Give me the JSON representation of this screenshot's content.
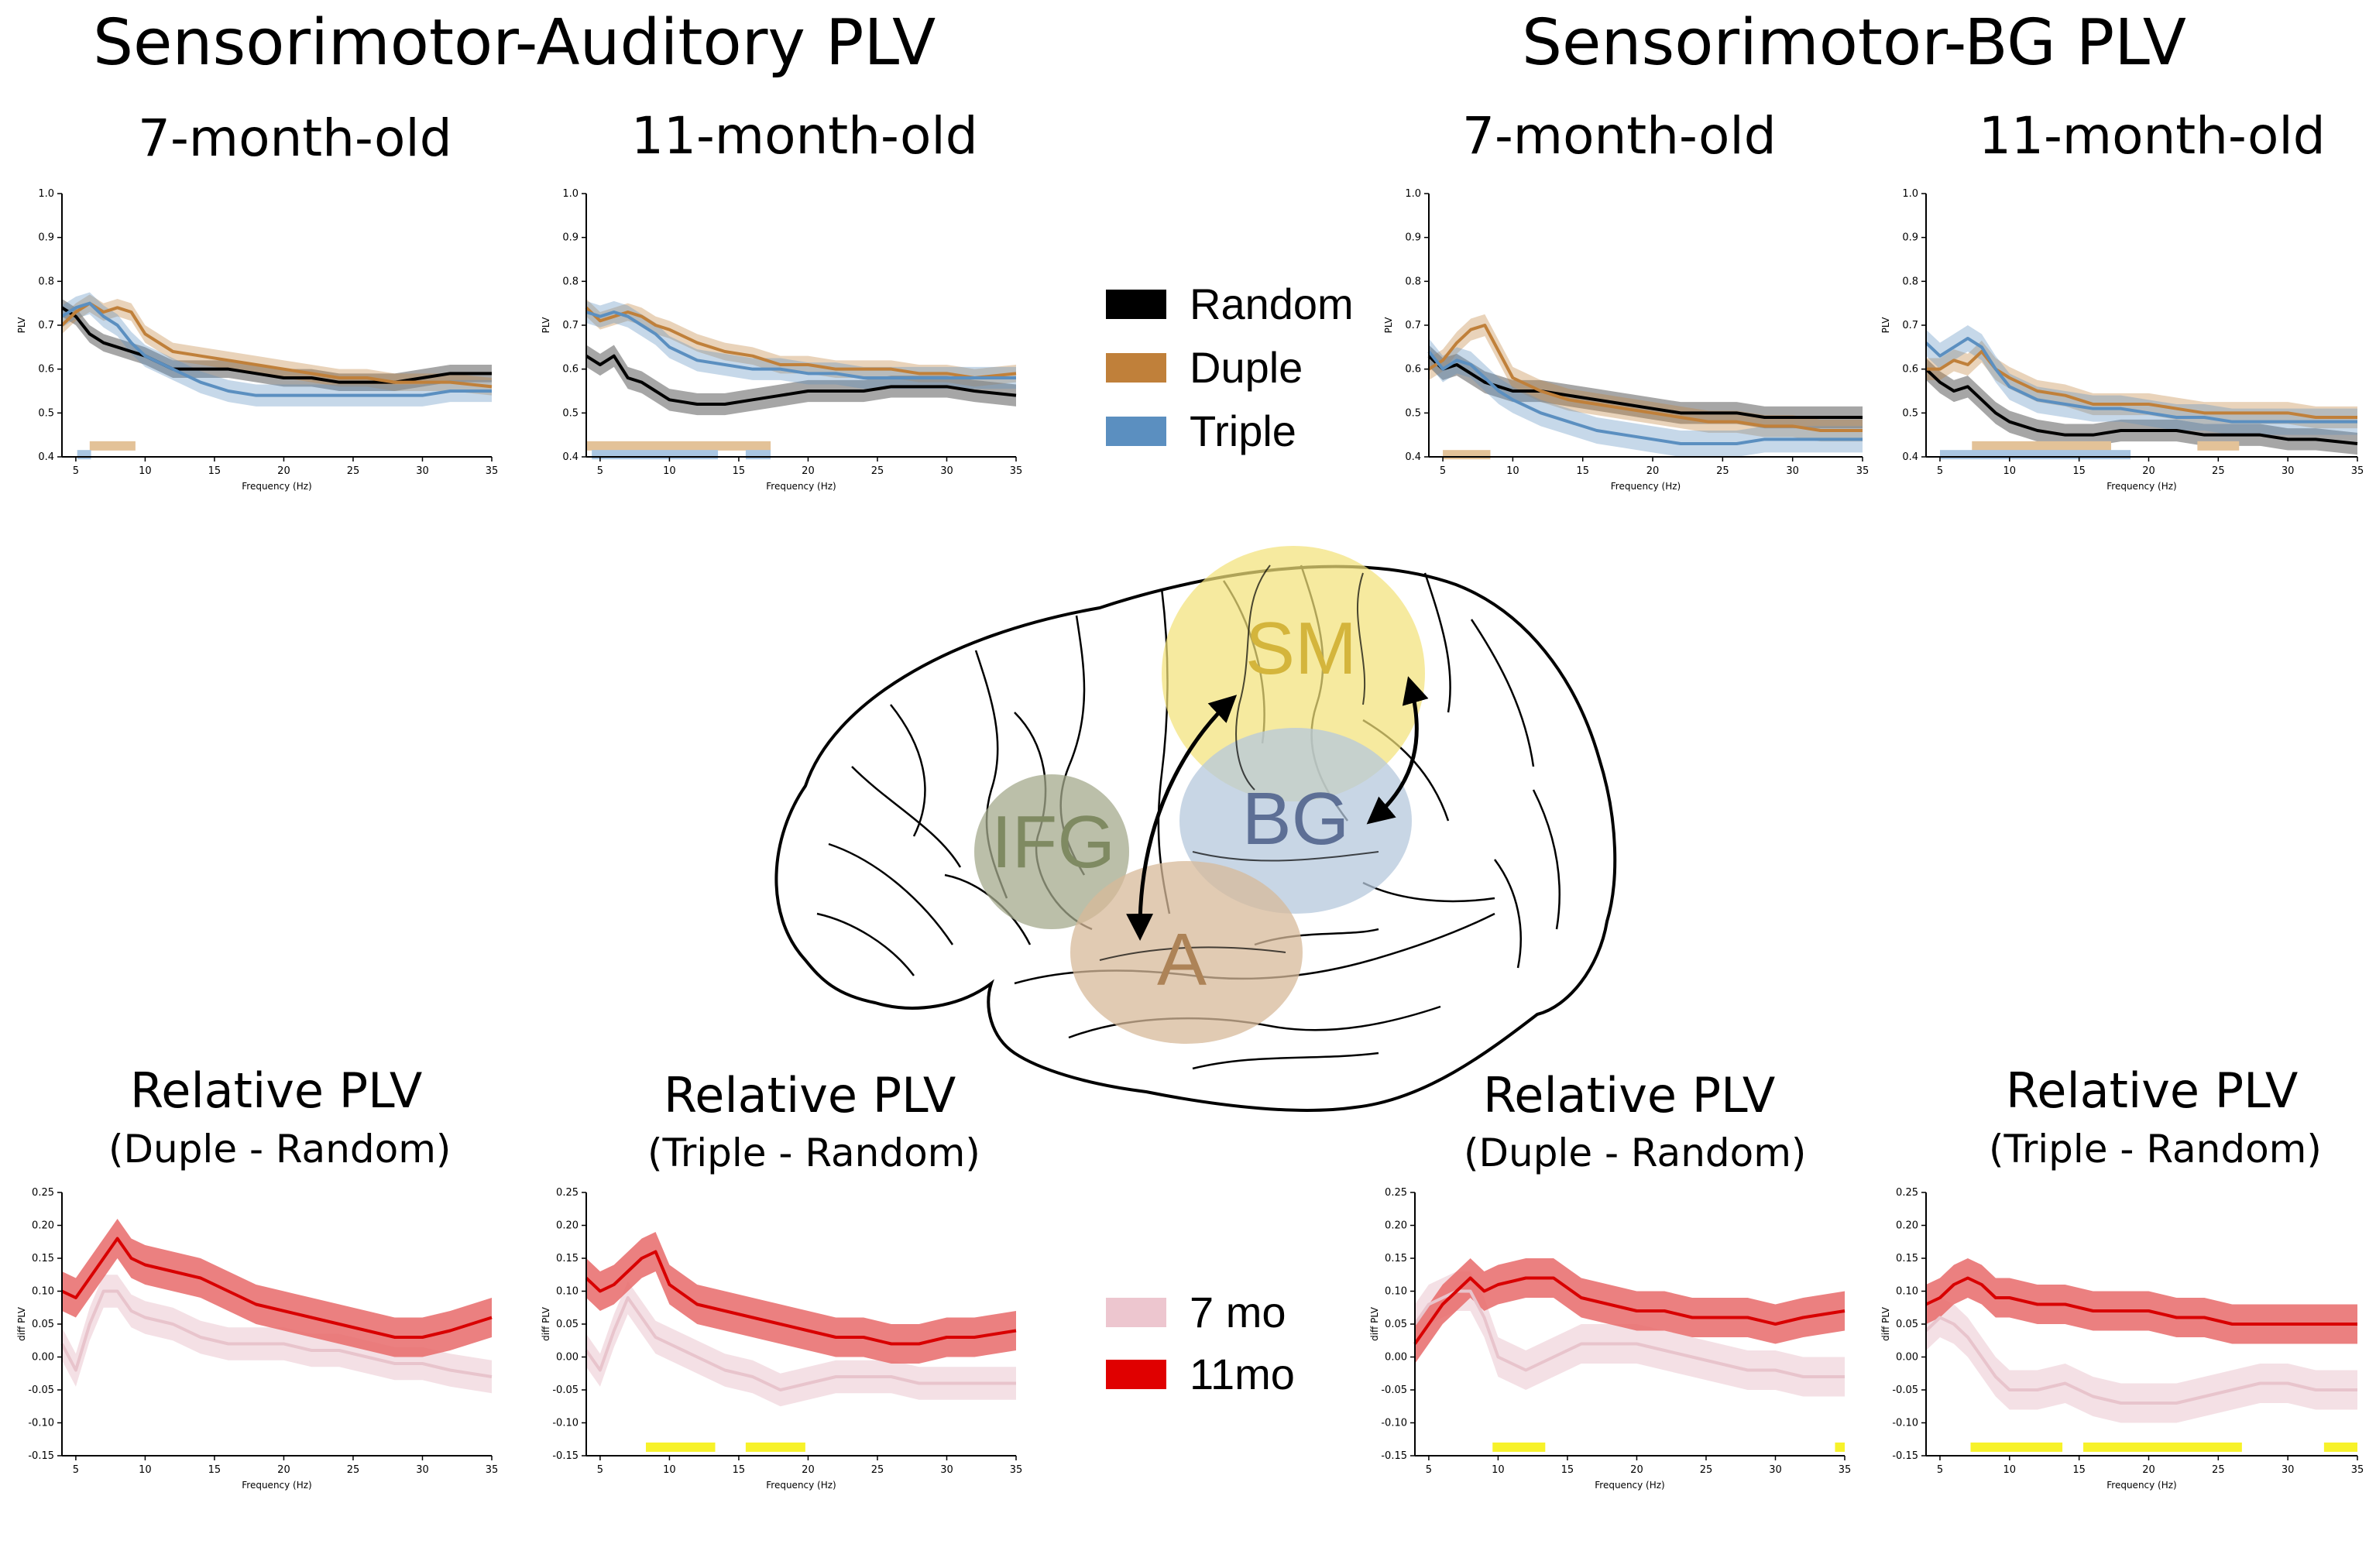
{
  "titles": {
    "sa_main": "Sensorimotor-Auditory PLV",
    "bg_main": "Sensorimotor-BG PLV",
    "age7": "7-month-old",
    "age11": "11-month-old",
    "rel_title": "Relative PLV",
    "duple_random": "(Duple - Random)",
    "triple_random": "(Triple - Random)"
  },
  "legend_conditions": [
    {
      "label": "Random",
      "color": "#000000"
    },
    {
      "label": "Duple",
      "color": "#c0803a"
    },
    {
      "label": "Triple",
      "color": "#5b8fc0"
    }
  ],
  "legend_ages": [
    {
      "label": "7 mo",
      "color": "#edc6cf"
    },
    {
      "label": "11mo",
      "color": "#e00000"
    }
  ],
  "brain": {
    "regions": [
      {
        "label": "SM",
        "color": "#f3e27a",
        "text_color": "#d4b53c"
      },
      {
        "label": "IFG",
        "color": "#a4aa8c",
        "text_color": "#7f8a62"
      },
      {
        "label": "BG",
        "color": "#b5c8dc",
        "text_color": "#5d6f95"
      },
      {
        "label": "A",
        "color": "#d7b99a",
        "text_color": "#ad8357"
      }
    ]
  },
  "axes": {
    "xlabel": "Frequency (Hz)",
    "plv_ylabel": "PLV",
    "diff_ylabel": "diff PLV",
    "x_ticks": [
      5,
      10,
      15,
      20,
      25,
      30,
      35
    ],
    "plv_ticks": [
      "0.4",
      "0.5",
      "0.6",
      "0.7",
      "0.8",
      "0.9",
      "1.0"
    ],
    "diff_ticks": [
      "-0.15",
      "-0.10",
      "-0.05",
      "0.00",
      "0.05",
      "0.10",
      "0.15",
      "0.20",
      "0.25"
    ]
  },
  "chart_data": [
    {
      "id": "sa7",
      "type": "line",
      "xlabel": "Frequency (Hz)",
      "ylabel": "PLV",
      "xlim": [
        4,
        35
      ],
      "ylim": [
        0.4,
        1.0
      ],
      "x": [
        4,
        5,
        6,
        7,
        8,
        9,
        10,
        12,
        14,
        16,
        18,
        20,
        22,
        24,
        26,
        28,
        30,
        32,
        35
      ],
      "series": [
        {
          "name": "Random",
          "color": "#000000",
          "band": 0.02,
          "values": [
            0.74,
            0.72,
            0.68,
            0.66,
            0.65,
            0.64,
            0.63,
            0.6,
            0.6,
            0.6,
            0.59,
            0.58,
            0.58,
            0.57,
            0.57,
            0.57,
            0.58,
            0.59,
            0.59
          ]
        },
        {
          "name": "Duple",
          "color": "#c0803a",
          "band": 0.02,
          "values": [
            0.7,
            0.73,
            0.75,
            0.73,
            0.74,
            0.73,
            0.68,
            0.64,
            0.63,
            0.62,
            0.61,
            0.6,
            0.59,
            0.58,
            0.58,
            0.57,
            0.57,
            0.57,
            0.56
          ]
        },
        {
          "name": "Triple",
          "color": "#5b8fc0",
          "band": 0.025,
          "values": [
            0.72,
            0.74,
            0.75,
            0.72,
            0.7,
            0.66,
            0.63,
            0.6,
            0.57,
            0.55,
            0.54,
            0.54,
            0.54,
            0.54,
            0.54,
            0.54,
            0.54,
            0.55,
            0.55
          ]
        }
      ],
      "significance": [
        {
          "from": 6.0,
          "to": 9.3,
          "color": "#e3c298",
          "level": 0.425
        },
        {
          "from": 5.1,
          "to": 6.1,
          "color": "#a9c6e2",
          "level": 0.405
        }
      ]
    },
    {
      "id": "sa11",
      "type": "line",
      "xlabel": "Frequency (Hz)",
      "ylabel": "PLV",
      "xlim": [
        4,
        35
      ],
      "ylim": [
        0.4,
        1.0
      ],
      "x": [
        4,
        5,
        6,
        7,
        8,
        9,
        10,
        12,
        14,
        16,
        18,
        20,
        22,
        24,
        26,
        28,
        30,
        32,
        35
      ],
      "series": [
        {
          "name": "Random",
          "color": "#000000",
          "band": 0.025,
          "values": [
            0.63,
            0.61,
            0.63,
            0.58,
            0.57,
            0.55,
            0.53,
            0.52,
            0.52,
            0.53,
            0.54,
            0.55,
            0.55,
            0.55,
            0.56,
            0.56,
            0.56,
            0.55,
            0.54
          ]
        },
        {
          "name": "Duple",
          "color": "#c0803a",
          "band": 0.02,
          "values": [
            0.74,
            0.71,
            0.72,
            0.73,
            0.72,
            0.7,
            0.69,
            0.66,
            0.64,
            0.63,
            0.61,
            0.61,
            0.6,
            0.6,
            0.6,
            0.59,
            0.59,
            0.58,
            0.59
          ]
        },
        {
          "name": "Triple",
          "color": "#5b8fc0",
          "band": 0.025,
          "values": [
            0.73,
            0.72,
            0.73,
            0.72,
            0.7,
            0.68,
            0.65,
            0.62,
            0.61,
            0.6,
            0.6,
            0.59,
            0.59,
            0.58,
            0.58,
            0.58,
            0.58,
            0.58,
            0.58
          ]
        }
      ],
      "significance": [
        {
          "from": 4.0,
          "to": 17.3,
          "color": "#e3c298",
          "level": 0.425
        },
        {
          "from": 4.4,
          "to": 13.5,
          "color": "#a9c6e2",
          "level": 0.405
        },
        {
          "from": 15.5,
          "to": 17.3,
          "color": "#a9c6e2",
          "level": 0.405
        }
      ]
    },
    {
      "id": "bg7",
      "type": "line",
      "xlabel": "Frequency (Hz)",
      "ylabel": "PLV",
      "xlim": [
        4,
        35
      ],
      "ylim": [
        0.4,
        1.0
      ],
      "x": [
        4,
        5,
        6,
        7,
        8,
        9,
        10,
        12,
        14,
        16,
        18,
        20,
        22,
        24,
        26,
        28,
        30,
        32,
        35
      ],
      "series": [
        {
          "name": "Random",
          "color": "#000000",
          "band": 0.025,
          "values": [
            0.63,
            0.6,
            0.61,
            0.59,
            0.57,
            0.56,
            0.55,
            0.55,
            0.54,
            0.53,
            0.52,
            0.51,
            0.5,
            0.5,
            0.5,
            0.49,
            0.49,
            0.49,
            0.49
          ]
        },
        {
          "name": "Duple",
          "color": "#c0803a",
          "band": 0.025,
          "values": [
            0.6,
            0.62,
            0.66,
            0.69,
            0.7,
            0.64,
            0.58,
            0.55,
            0.53,
            0.52,
            0.51,
            0.5,
            0.49,
            0.48,
            0.48,
            0.47,
            0.47,
            0.46,
            0.46
          ]
        },
        {
          "name": "Triple",
          "color": "#5b8fc0",
          "band": 0.03,
          "values": [
            0.64,
            0.6,
            0.62,
            0.61,
            0.58,
            0.55,
            0.53,
            0.5,
            0.48,
            0.46,
            0.45,
            0.44,
            0.43,
            0.43,
            0.43,
            0.44,
            0.44,
            0.44,
            0.44
          ]
        }
      ],
      "significance": [
        {
          "from": 5.0,
          "to": 8.4,
          "color": "#e3c298",
          "level": 0.405
        }
      ]
    },
    {
      "id": "bg11",
      "type": "line",
      "xlabel": "Frequency (Hz)",
      "ylabel": "PLV",
      "xlim": [
        4,
        35
      ],
      "ylim": [
        0.4,
        1.0
      ],
      "x": [
        4,
        5,
        6,
        7,
        8,
        9,
        10,
        12,
        14,
        16,
        18,
        20,
        22,
        24,
        26,
        28,
        30,
        32,
        35
      ],
      "series": [
        {
          "name": "Random",
          "color": "#000000",
          "band": 0.025,
          "values": [
            0.6,
            0.57,
            0.55,
            0.56,
            0.53,
            0.5,
            0.48,
            0.46,
            0.45,
            0.45,
            0.46,
            0.46,
            0.46,
            0.45,
            0.45,
            0.45,
            0.44,
            0.44,
            0.43
          ]
        },
        {
          "name": "Duple",
          "color": "#c0803a",
          "band": 0.025,
          "values": [
            0.6,
            0.6,
            0.62,
            0.61,
            0.64,
            0.6,
            0.58,
            0.55,
            0.54,
            0.52,
            0.52,
            0.52,
            0.51,
            0.5,
            0.5,
            0.5,
            0.5,
            0.49,
            0.49
          ]
        },
        {
          "name": "Triple",
          "color": "#5b8fc0",
          "band": 0.03,
          "values": [
            0.66,
            0.63,
            0.65,
            0.67,
            0.65,
            0.6,
            0.56,
            0.53,
            0.52,
            0.51,
            0.51,
            0.5,
            0.49,
            0.49,
            0.48,
            0.48,
            0.48,
            0.48,
            0.48
          ]
        }
      ],
      "significance": [
        {
          "from": 7.3,
          "to": 17.3,
          "color": "#e3c298",
          "level": 0.425
        },
        {
          "from": 23.5,
          "to": 26.5,
          "color": "#e3c298",
          "level": 0.425
        },
        {
          "from": 5.0,
          "to": 18.7,
          "color": "#a9c6e2",
          "level": 0.405
        }
      ]
    },
    {
      "id": "sa_duple",
      "type": "line",
      "xlabel": "Frequency (Hz)",
      "ylabel": "diff PLV",
      "xlim": [
        4,
        35
      ],
      "ylim": [
        -0.15,
        0.25
      ],
      "x": [
        4,
        5,
        6,
        7,
        8,
        9,
        10,
        12,
        14,
        16,
        18,
        20,
        22,
        24,
        26,
        28,
        30,
        32,
        35
      ],
      "series": [
        {
          "name": "7 mo",
          "color": "#e8c4cc",
          "fill": "#f2dae0",
          "band": 0.025,
          "values": [
            0.02,
            -0.02,
            0.05,
            0.1,
            0.1,
            0.07,
            0.06,
            0.05,
            0.03,
            0.02,
            0.02,
            0.02,
            0.01,
            0.01,
            0.0,
            -0.01,
            -0.01,
            -0.02,
            -0.03
          ]
        },
        {
          "name": "11mo",
          "color": "#d80000",
          "fill": "#e76a6a",
          "band": 0.03,
          "values": [
            0.1,
            0.09,
            0.12,
            0.15,
            0.18,
            0.15,
            0.14,
            0.13,
            0.12,
            0.1,
            0.08,
            0.07,
            0.06,
            0.05,
            0.04,
            0.03,
            0.03,
            0.04,
            0.06
          ]
        }
      ],
      "significance": []
    },
    {
      "id": "sa_triple",
      "type": "line",
      "xlabel": "Frequency (Hz)",
      "ylabel": "diff PLV",
      "xlim": [
        4,
        35
      ],
      "ylim": [
        -0.15,
        0.25
      ],
      "x": [
        4,
        5,
        6,
        7,
        8,
        9,
        10,
        12,
        14,
        16,
        18,
        20,
        22,
        24,
        26,
        28,
        30,
        32,
        35
      ],
      "series": [
        {
          "name": "7 mo",
          "color": "#e8c4cc",
          "fill": "#f2dae0",
          "band": 0.025,
          "values": [
            0.01,
            -0.02,
            0.04,
            0.09,
            0.06,
            0.03,
            0.02,
            0.0,
            -0.02,
            -0.03,
            -0.05,
            -0.04,
            -0.03,
            -0.03,
            -0.03,
            -0.04,
            -0.04,
            -0.04,
            -0.04
          ]
        },
        {
          "name": "11mo",
          "color": "#d80000",
          "fill": "#e76a6a",
          "band": 0.03,
          "values": [
            0.12,
            0.1,
            0.11,
            0.13,
            0.15,
            0.16,
            0.11,
            0.08,
            0.07,
            0.06,
            0.05,
            0.04,
            0.03,
            0.03,
            0.02,
            0.02,
            0.03,
            0.03,
            0.04
          ]
        }
      ],
      "significance": [
        {
          "from": 8.3,
          "to": 13.3,
          "color": "#f7f22a",
          "level": -0.137
        },
        {
          "from": 15.5,
          "to": 19.8,
          "color": "#f7f22a",
          "level": -0.137
        }
      ]
    },
    {
      "id": "bg_duple",
      "type": "line",
      "xlabel": "Frequency (Hz)",
      "ylabel": "diff PLV",
      "xlim": [
        4,
        35
      ],
      "ylim": [
        -0.15,
        0.25
      ],
      "x": [
        4,
        5,
        6,
        7,
        8,
        9,
        10,
        12,
        14,
        16,
        18,
        20,
        22,
        24,
        26,
        28,
        30,
        32,
        35
      ],
      "series": [
        {
          "name": "7 mo",
          "color": "#e8c4cc",
          "fill": "#f2dae0",
          "band": 0.03,
          "values": [
            0.05,
            0.08,
            0.09,
            0.1,
            0.1,
            0.06,
            0.0,
            -0.02,
            0.0,
            0.02,
            0.02,
            0.02,
            0.01,
            0.0,
            -0.01,
            -0.02,
            -0.02,
            -0.03,
            -0.03
          ]
        },
        {
          "name": "11mo",
          "color": "#d80000",
          "fill": "#e76a6a",
          "band": 0.03,
          "values": [
            0.02,
            0.05,
            0.08,
            0.1,
            0.12,
            0.1,
            0.11,
            0.12,
            0.12,
            0.09,
            0.08,
            0.07,
            0.07,
            0.06,
            0.06,
            0.06,
            0.05,
            0.06,
            0.07
          ]
        }
      ],
      "significance": [
        {
          "from": 9.6,
          "to": 13.4,
          "color": "#f7f22a",
          "level": -0.137
        },
        {
          "from": 34.3,
          "to": 35.0,
          "color": "#f7f22a",
          "level": -0.137
        }
      ]
    },
    {
      "id": "bg_triple",
      "type": "line",
      "xlabel": "Frequency (Hz)",
      "ylabel": "diff PLV",
      "xlim": [
        4,
        35
      ],
      "ylim": [
        -0.15,
        0.25
      ],
      "x": [
        4,
        5,
        6,
        7,
        8,
        9,
        10,
        12,
        14,
        16,
        18,
        20,
        22,
        24,
        26,
        28,
        30,
        32,
        35
      ],
      "series": [
        {
          "name": "7 mo",
          "color": "#e8c4cc",
          "fill": "#f2dae0",
          "band": 0.03,
          "values": [
            0.04,
            0.06,
            0.05,
            0.03,
            0.0,
            -0.03,
            -0.05,
            -0.05,
            -0.04,
            -0.06,
            -0.07,
            -0.07,
            -0.07,
            -0.06,
            -0.05,
            -0.04,
            -0.04,
            -0.05,
            -0.05
          ]
        },
        {
          "name": "11mo",
          "color": "#d80000",
          "fill": "#e76a6a",
          "band": 0.03,
          "values": [
            0.08,
            0.09,
            0.11,
            0.12,
            0.11,
            0.09,
            0.09,
            0.08,
            0.08,
            0.07,
            0.07,
            0.07,
            0.06,
            0.06,
            0.05,
            0.05,
            0.05,
            0.05,
            0.05
          ]
        }
      ],
      "significance": [
        {
          "from": 7.2,
          "to": 13.8,
          "color": "#f7f22a",
          "level": -0.137
        },
        {
          "from": 15.3,
          "to": 26.7,
          "color": "#f7f22a",
          "level": -0.137
        },
        {
          "from": 32.6,
          "to": 35.0,
          "color": "#f7f22a",
          "level": -0.137
        }
      ]
    }
  ]
}
